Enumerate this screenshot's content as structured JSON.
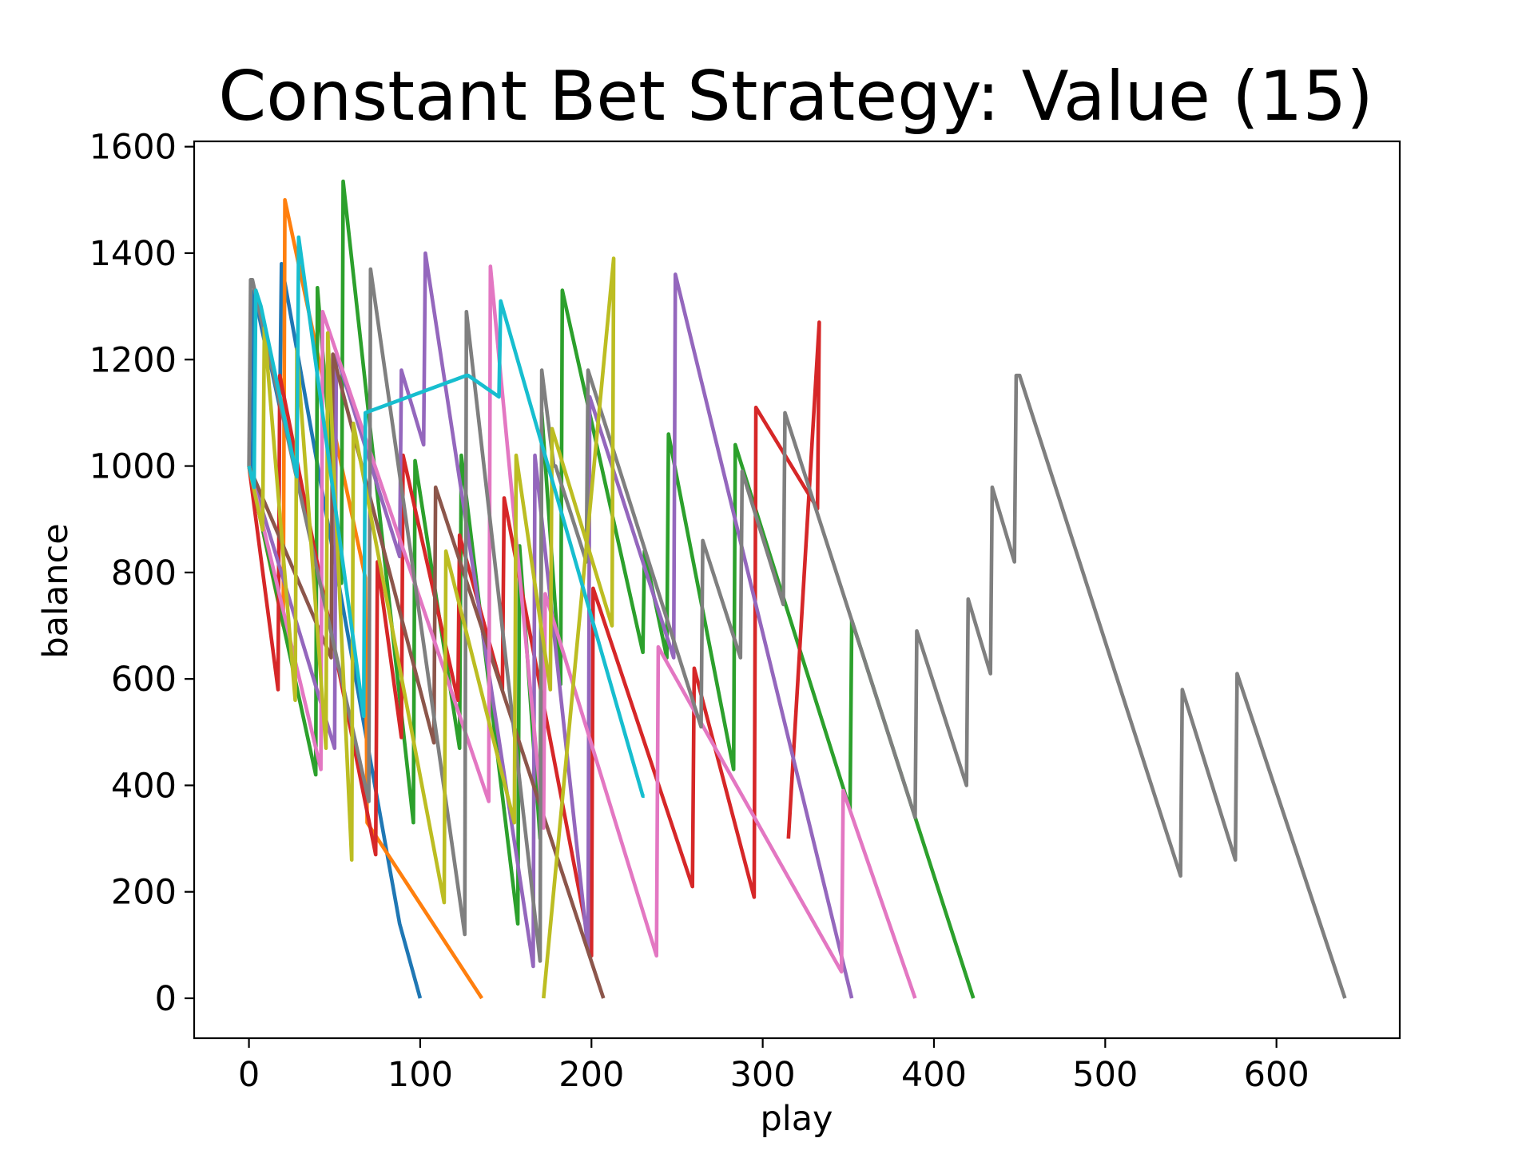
{
  "chart_data": {
    "type": "line",
    "title": "Constant Bet Strategy: Value (15)",
    "xlabel": "play",
    "ylabel": "balance",
    "xlim": [
      -32,
      672
    ],
    "ylim": [
      -75,
      1610
    ],
    "xticks": [
      0,
      100,
      200,
      300,
      400,
      500,
      600
    ],
    "yticks": [
      0,
      200,
      400,
      600,
      800,
      1000,
      1200,
      1400,
      1600
    ],
    "grid": false,
    "legend": "none",
    "series": [
      {
        "color": "#1f77b4",
        "x": [
          0,
          2,
          3,
          5,
          6,
          10,
          12,
          18,
          19,
          88,
          100
        ],
        "y": [
          1000,
          970,
          1330,
          1300,
          1280,
          1220,
          1200,
          1110,
          1380,
          140,
          0
        ]
      },
      {
        "color": "#ff7f0e",
        "x": [
          0,
          20,
          21,
          68,
          69,
          136
        ],
        "y": [
          1000,
          700,
          1500,
          790,
          330,
          0
        ]
      },
      {
        "color": "#2ca02c",
        "x": [
          0,
          39,
          40,
          54,
          55,
          96,
          97,
          123,
          124,
          157,
          158,
          170,
          171,
          182,
          183,
          230,
          231,
          244,
          245,
          283,
          284,
          351,
          352,
          423
        ],
        "y": [
          1000,
          420,
          1335,
          780,
          1535,
          330,
          1010,
          470,
          1020,
          140,
          850,
          300,
          1100,
          590,
          1330,
          650,
          840,
          640,
          1060,
          430,
          1040,
          355,
          710,
          0
        ]
      },
      {
        "color": "#d62728",
        "x": [
          0,
          17,
          18,
          74,
          75,
          89,
          90,
          122,
          123,
          148,
          149,
          200,
          201,
          259,
          260,
          295,
          296,
          332,
          333,
          315
        ],
        "y": [
          1000,
          580,
          1170,
          270,
          820,
          490,
          1020,
          560,
          870,
          580,
          940,
          80,
          770,
          210,
          620,
          190,
          1110,
          920,
          1270,
          300
        ]
      },
      {
        "color": "#9467bd",
        "x": [
          0,
          50,
          51,
          88,
          89,
          102,
          103,
          166,
          167,
          198,
          199,
          248,
          249,
          352
        ],
        "y": [
          1000,
          470,
          1210,
          830,
          1180,
          1040,
          1400,
          60,
          1020,
          90,
          1130,
          640,
          1360,
          0
        ]
      },
      {
        "color": "#8c564b",
        "x": [
          0,
          48,
          49,
          108,
          109,
          207
        ],
        "y": [
          1000,
          640,
          1210,
          480,
          960,
          0
        ]
      },
      {
        "color": "#e377c2",
        "x": [
          0,
          42,
          43,
          140,
          141,
          172,
          173,
          238,
          239,
          346,
          347,
          389
        ],
        "y": [
          1000,
          430,
          1290,
          370,
          1375,
          320,
          760,
          80,
          660,
          50,
          390,
          0
        ]
      },
      {
        "color": "#7f7f7f",
        "x": [
          0,
          1,
          2,
          70,
          71,
          126,
          127,
          170,
          171,
          178,
          179,
          197,
          198,
          264,
          265,
          287,
          288,
          312,
          313,
          389,
          390,
          419,
          420,
          433,
          434,
          447,
          448,
          449,
          450,
          544,
          545,
          576,
          577,
          640
        ],
        "y": [
          1000,
          1350,
          1350,
          370,
          1370,
          120,
          1290,
          70,
          1180,
          1000,
          1000,
          820,
          1180,
          510,
          860,
          640,
          990,
          740,
          1100,
          340,
          690,
          400,
          750,
          610,
          960,
          820,
          1170,
          1170,
          1170,
          230,
          580,
          260,
          610,
          0
        ]
      },
      {
        "color": "#bcbd22",
        "x": [
          0,
          8,
          9,
          27,
          28,
          45,
          46,
          60,
          61,
          114,
          115,
          155,
          156,
          176,
          177,
          212,
          213,
          172
        ],
        "y": [
          1000,
          880,
          1260,
          560,
          1220,
          470,
          1250,
          260,
          1080,
          180,
          840,
          330,
          1020,
          580,
          1070,
          700,
          1390,
          0
        ]
      },
      {
        "color": "#17becf",
        "x": [
          0,
          3,
          4,
          6,
          7,
          28,
          29,
          67,
          68,
          127,
          128,
          146,
          147,
          230,
          231
        ],
        "y": [
          1000,
          960,
          1330,
          1310,
          1300,
          980,
          1430,
          530,
          1100,
          1170,
          1170,
          1130,
          1310,
          380,
          380
        ]
      }
    ]
  }
}
